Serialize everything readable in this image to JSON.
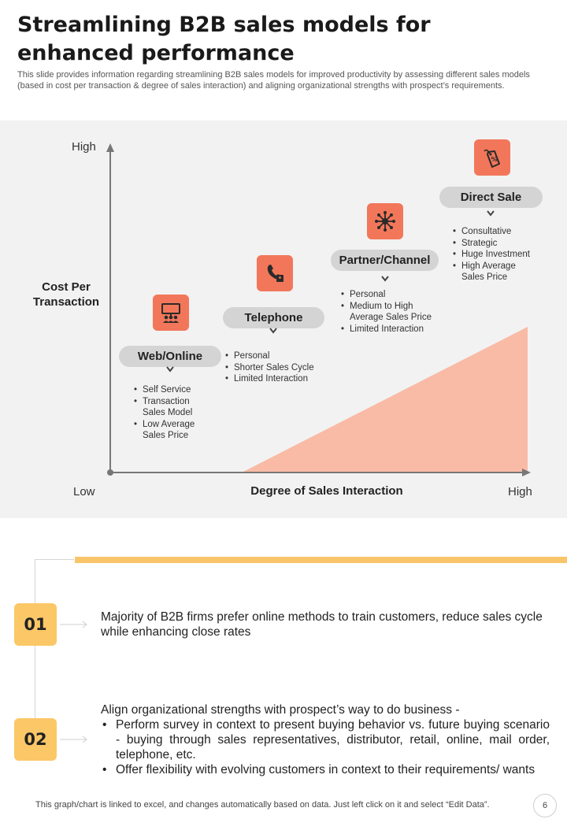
{
  "title": "Streamlining B2B sales models for enhanced performance",
  "subtitle": "This slide provides information regarding streamlining B2B sales models for improved productivity by assessing different sales models (based in cost per transaction & degree of sales interaction) and aligning organizational strengths with prospect’s requirements.",
  "diagram": {
    "y_axis": {
      "high": "High",
      "low": "Low",
      "title": "Cost Per Transaction"
    },
    "x_axis": {
      "high": "High",
      "title": "Degree of Sales Interaction"
    },
    "accent_color": "#f2775a",
    "wedge_color": "#f9bba6",
    "models": [
      {
        "name": "Web/Online",
        "icon": "presentation-icon",
        "points": [
          "Self Service",
          "Transaction Sales Model",
          "Low Average Sales Price"
        ]
      },
      {
        "name": "Telephone",
        "icon": "phone-icon",
        "points": [
          "Personal",
          "Shorter Sales Cycle",
          "Limited Interaction"
        ]
      },
      {
        "name": "Partner/Channel",
        "icon": "network-icon",
        "points": [
          "Personal",
          "Medium to High Average Sales Price",
          "Limited Interaction"
        ]
      },
      {
        "name": "Direct Sale",
        "icon": "price-tag-icon",
        "points": [
          "Consultative",
          "Strategic",
          "Huge Investment",
          "High Average Sales Price"
        ]
      }
    ]
  },
  "insights": [
    {
      "number": "01",
      "text": "Majority of B2B firms prefer online methods to train customers, reduce sales cycle while enhancing close rates"
    },
    {
      "number": "02",
      "text": "Align organizational strengths with prospect’s way to do business -",
      "bullets": [
        "Perform survey in context to present buying behavior vs. future buying scenario - buying through sales representatives, distributor, retail, online, mail order, telephone, etc.",
        "Offer flexibility with evolving customers in context to their requirements/ wants"
      ]
    }
  ],
  "footer": "This graph/chart is linked to excel, and changes automatically based on data. Just left click on it and select “Edit Data”.",
  "page_number": "6"
}
